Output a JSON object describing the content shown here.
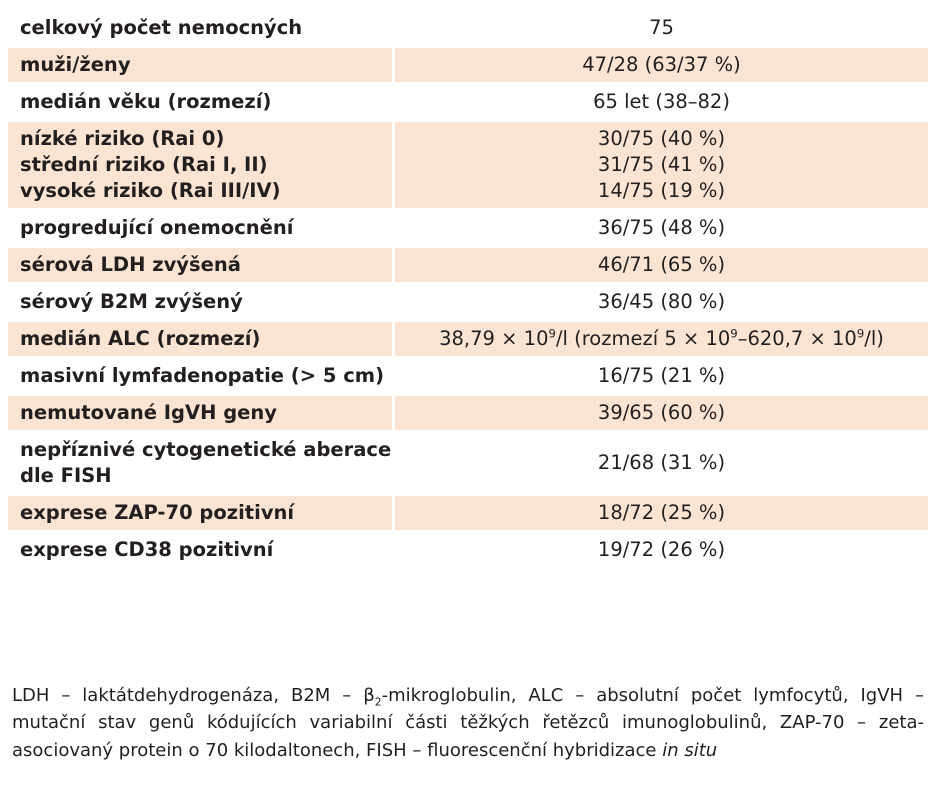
{
  "colors": {
    "shaded_row": "#fbe5d2",
    "text": "#231f20"
  },
  "rows": [
    {
      "label": [
        "celkový počet nemocných"
      ],
      "value": [
        "75"
      ],
      "shaded": false
    },
    {
      "label": [
        "muži/ženy"
      ],
      "value": [
        "47/28 (63/37 %)"
      ],
      "shaded": true
    },
    {
      "label": [
        "medián věku (rozmezí)"
      ],
      "value": [
        "65 let (38–82)"
      ],
      "shaded": false
    },
    {
      "label": [
        "nízké riziko (Rai 0)",
        "střední riziko (Rai I, II)",
        "vysoké riziko (Rai III/IV)"
      ],
      "value": [
        "30/75 (40 %)",
        "31/75 (41 %)",
        "14/75 (19 %)"
      ],
      "shaded": true
    },
    {
      "label": [
        "progredující onemocnění"
      ],
      "value": [
        "36/75 (48 %)"
      ],
      "shaded": false
    },
    {
      "label": [
        "sérová LDH zvýšená"
      ],
      "value": [
        "46/71 (65 %)"
      ],
      "shaded": true
    },
    {
      "label": [
        "sérový B2M zvýšený"
      ],
      "value": [
        "36/45 (80 %)"
      ],
      "shaded": false
    },
    {
      "label": [
        "medián ALC (rozmezí)"
      ],
      "value_parts": [
        "38,79 × 10",
        "9",
        "/l (rozmezí 5 × 10",
        "9",
        "–620,7 × 10",
        "9",
        "/l)"
      ],
      "shaded": true
    },
    {
      "label": [
        "masivní lymfadenopatie (> 5 cm)"
      ],
      "value": [
        "16/75 (21 %)"
      ],
      "shaded": false
    },
    {
      "label": [
        "nemutované IgVH geny"
      ],
      "value": [
        "39/65 (60 %)"
      ],
      "shaded": true
    },
    {
      "label": [
        "nepříznivé cytogenetické aberace",
        "dle FISH"
      ],
      "value": [
        "21/68 (31 %)"
      ],
      "shaded": false
    },
    {
      "label": [
        "exprese ZAP-70 pozitivní"
      ],
      "value": [
        "18/72 (25 %)"
      ],
      "shaded": true
    },
    {
      "label": [
        "exprese CD38 pozitivní"
      ],
      "value": [
        "19/72 (26 %)"
      ],
      "shaded": false
    }
  ],
  "footnote": {
    "part1": "LDH – laktátdehydrogenáza, B2M – β",
    "sub": "2",
    "part2": "-mikroglobulin, ALC – absolutní počet lymfocytů, IgVH – mutační stav genů kódujících variabilní části těžkých řetězců imunoglobulinů, ZAP-70 – zeta-asociovaný protein o 70 kilodaltonech, FISH – fluorescenční hybridizace ",
    "italic": "in situ"
  }
}
